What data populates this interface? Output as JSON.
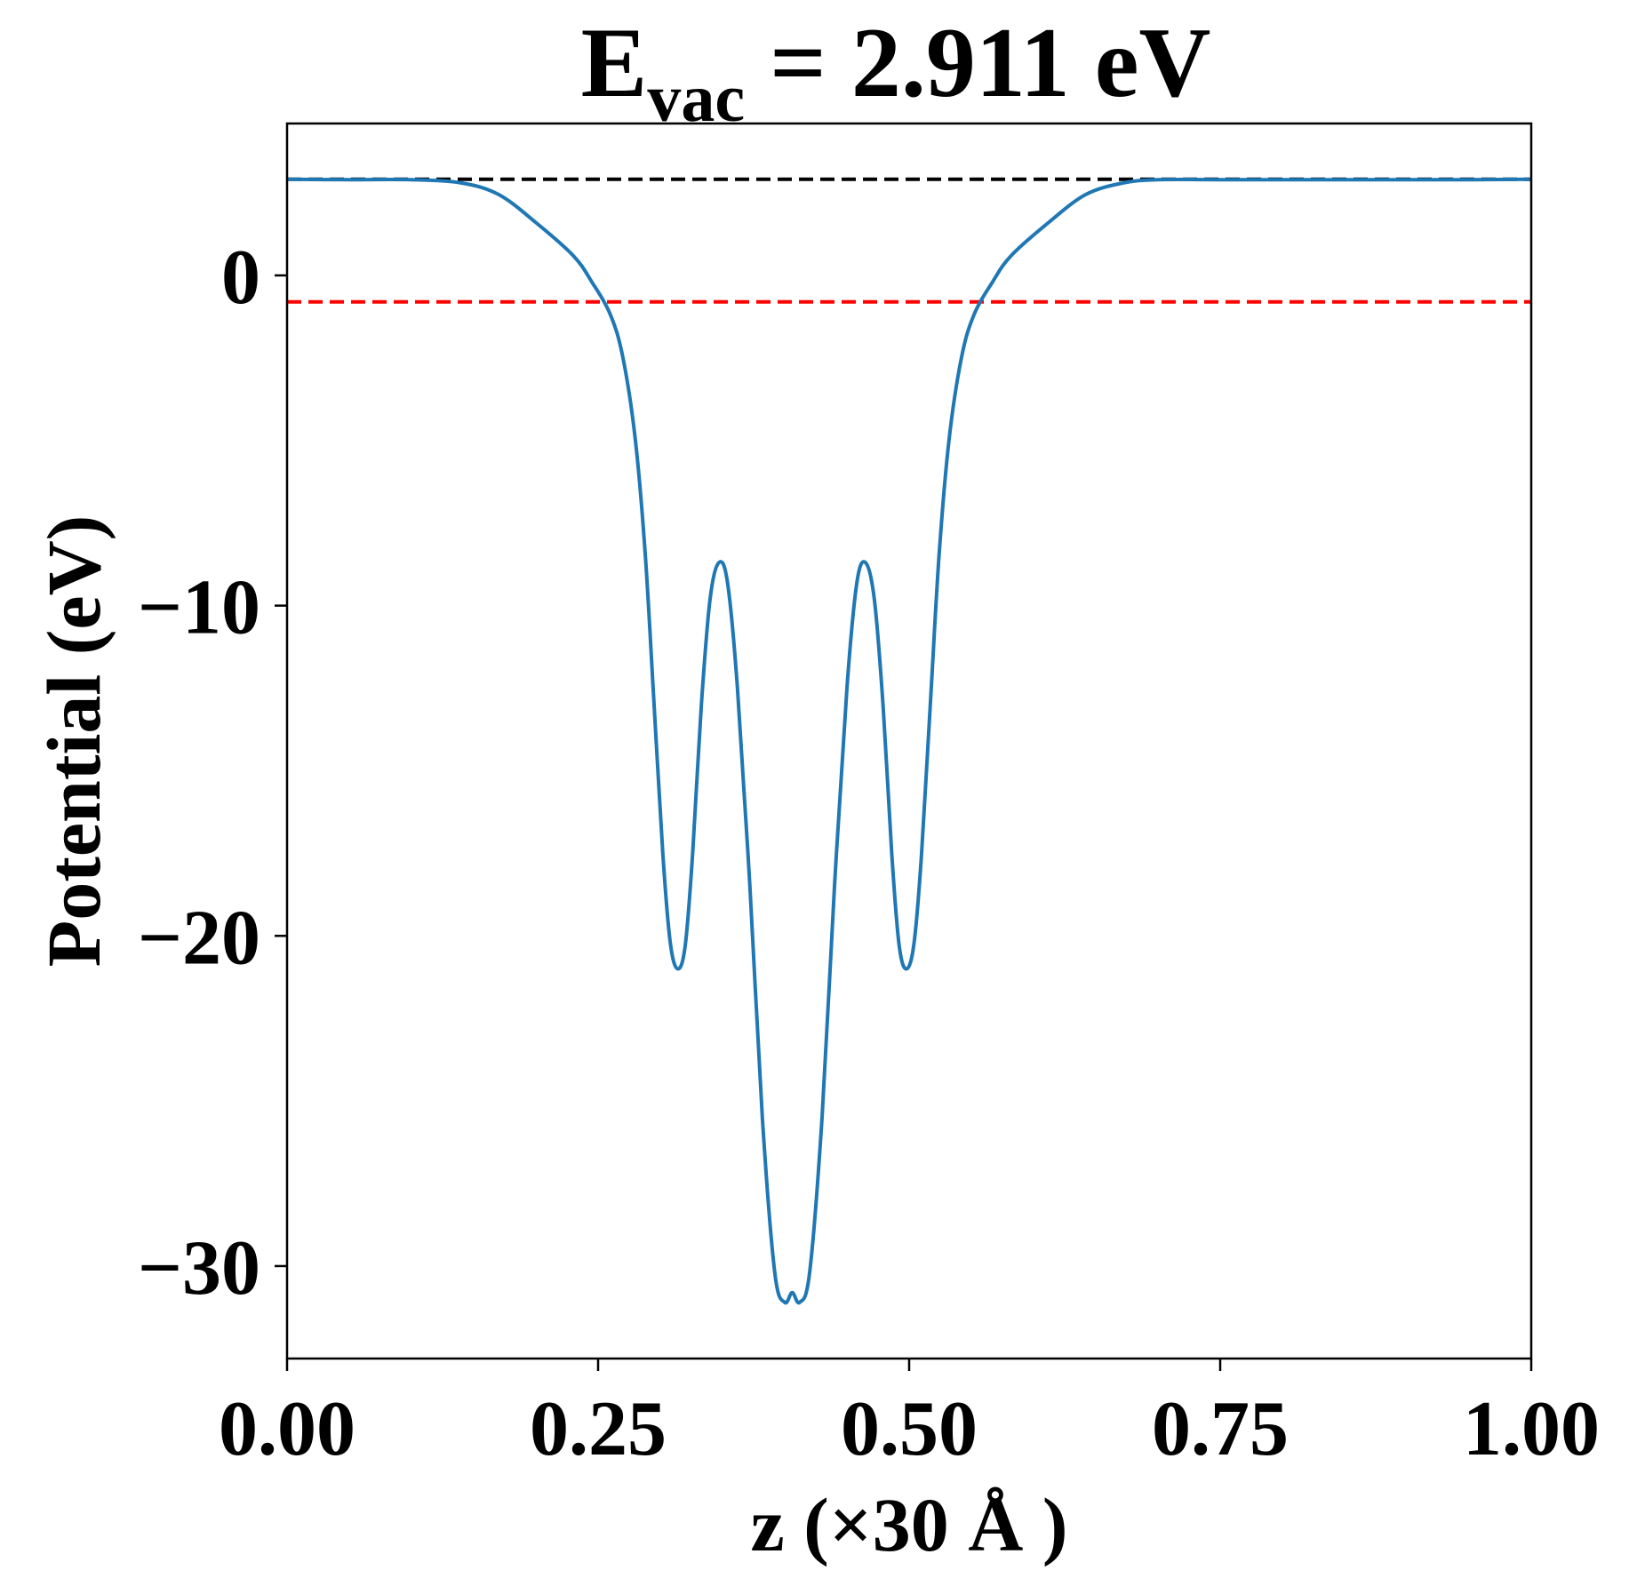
{
  "chart_data": {
    "type": "line",
    "title": {
      "main": "E",
      "subscript": "vac",
      "rest": " = 2.911 eV"
    },
    "xlabel": "z (×30 Å )",
    "ylabel": "Potential (eV)",
    "xlim": [
      0.0,
      1.0
    ],
    "ylim": [
      -32.8,
      4.6
    ],
    "x_ticks": [
      {
        "value": 0.0,
        "label": "0.00"
      },
      {
        "value": 0.25,
        "label": "0.25"
      },
      {
        "value": 0.5,
        "label": "0.50"
      },
      {
        "value": 0.75,
        "label": "0.75"
      },
      {
        "value": 1.0,
        "label": "1.00"
      }
    ],
    "y_ticks": [
      {
        "value": 0,
        "label": "0"
      },
      {
        "value": -10,
        "label": "−10"
      },
      {
        "value": -20,
        "label": "−20"
      },
      {
        "value": -30,
        "label": "−30"
      }
    ],
    "grid": false,
    "legend": "none",
    "reference_lines": [
      {
        "y": 2.911,
        "color": "#000000",
        "style": "dashed"
      },
      {
        "y": -0.8,
        "color": "#ff0000",
        "style": "dashed"
      }
    ],
    "series": [
      {
        "color": "#1f77b4",
        "points": [
          [
            0.0,
            2.91
          ],
          [
            0.05,
            2.9
          ],
          [
            0.1,
            2.9
          ],
          [
            0.14,
            2.8
          ],
          [
            0.17,
            2.45
          ],
          [
            0.2,
            1.6
          ],
          [
            0.23,
            0.6
          ],
          [
            0.245,
            -0.2
          ],
          [
            0.26,
            -1.2
          ],
          [
            0.27,
            -2.5
          ],
          [
            0.28,
            -5.0
          ],
          [
            0.288,
            -8.5
          ],
          [
            0.295,
            -13.0
          ],
          [
            0.302,
            -17.5
          ],
          [
            0.308,
            -20.2
          ],
          [
            0.314,
            -21.0
          ],
          [
            0.32,
            -20.3
          ],
          [
            0.326,
            -17.5
          ],
          [
            0.333,
            -13.0
          ],
          [
            0.34,
            -9.8
          ],
          [
            0.347,
            -8.7
          ],
          [
            0.354,
            -9.3
          ],
          [
            0.362,
            -12.5
          ],
          [
            0.372,
            -18.5
          ],
          [
            0.382,
            -25.5
          ],
          [
            0.392,
            -30.2
          ],
          [
            0.4,
            -31.1
          ],
          [
            0.406,
            -30.8
          ],
          [
            0.412,
            -31.1
          ],
          [
            0.42,
            -30.2
          ],
          [
            0.43,
            -25.5
          ],
          [
            0.44,
            -18.5
          ],
          [
            0.45,
            -12.5
          ],
          [
            0.458,
            -9.3
          ],
          [
            0.465,
            -8.7
          ],
          [
            0.472,
            -9.8
          ],
          [
            0.479,
            -13.0
          ],
          [
            0.486,
            -17.5
          ],
          [
            0.492,
            -20.3
          ],
          [
            0.498,
            -21.0
          ],
          [
            0.504,
            -20.2
          ],
          [
            0.51,
            -17.5
          ],
          [
            0.517,
            -13.0
          ],
          [
            0.524,
            -8.5
          ],
          [
            0.532,
            -5.0
          ],
          [
            0.542,
            -2.5
          ],
          [
            0.552,
            -1.2
          ],
          [
            0.567,
            -0.2
          ],
          [
            0.582,
            0.6
          ],
          [
            0.612,
            1.6
          ],
          [
            0.642,
            2.45
          ],
          [
            0.672,
            2.8
          ],
          [
            0.7,
            2.9
          ],
          [
            0.75,
            2.9
          ],
          [
            0.85,
            2.9
          ],
          [
            0.95,
            2.9
          ],
          [
            1.0,
            2.91
          ]
        ]
      }
    ]
  }
}
